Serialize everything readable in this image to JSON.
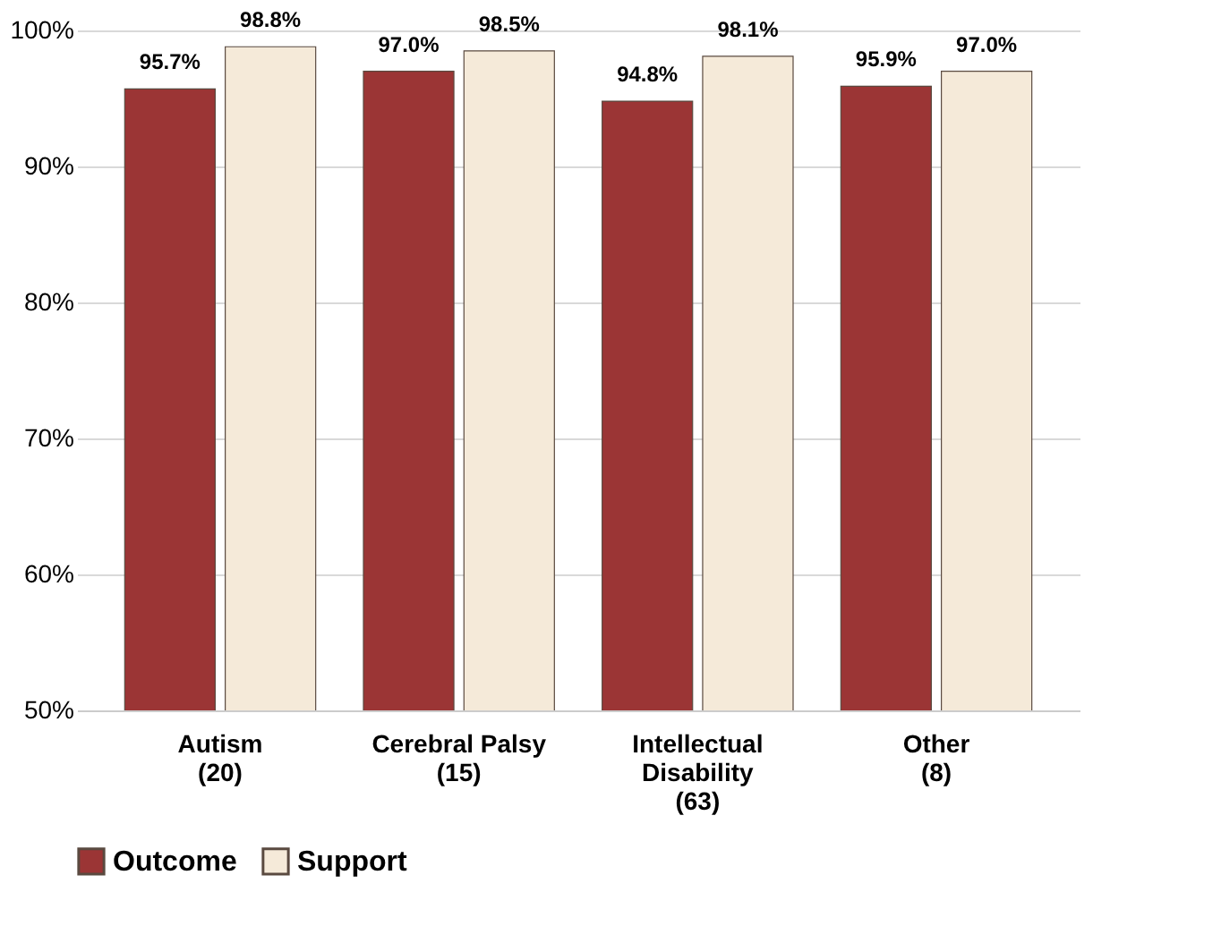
{
  "chart_data": {
    "type": "bar",
    "categories": [
      "Autism\n(20)",
      "Cerebral Palsy\n(15)",
      "Intellectual\nDisability\n(63)",
      "Other\n(8)"
    ],
    "series": [
      {
        "name": "Outcome",
        "color": "#9b3535",
        "values": [
          95.7,
          97.0,
          94.8,
          95.9
        ],
        "value_labels": [
          "95.7%",
          "97.0%",
          "94.8%",
          "95.9%"
        ]
      },
      {
        "name": "Support",
        "color": "#f5ead9",
        "values": [
          98.8,
          98.5,
          98.1,
          97.0
        ],
        "value_labels": [
          "98.8%",
          "98.5%",
          "98.1%",
          "97.0%"
        ]
      }
    ],
    "ylim": [
      50,
      100
    ],
    "yticks": [
      {
        "value": 50,
        "label": "50%"
      },
      {
        "value": 60,
        "label": "60%"
      },
      {
        "value": 70,
        "label": "70%"
      },
      {
        "value": 80,
        "label": "80%"
      },
      {
        "value": 90,
        "label": "90%"
      },
      {
        "value": 100,
        "label": "100%"
      }
    ],
    "grid": "y",
    "legend": "bottom"
  }
}
